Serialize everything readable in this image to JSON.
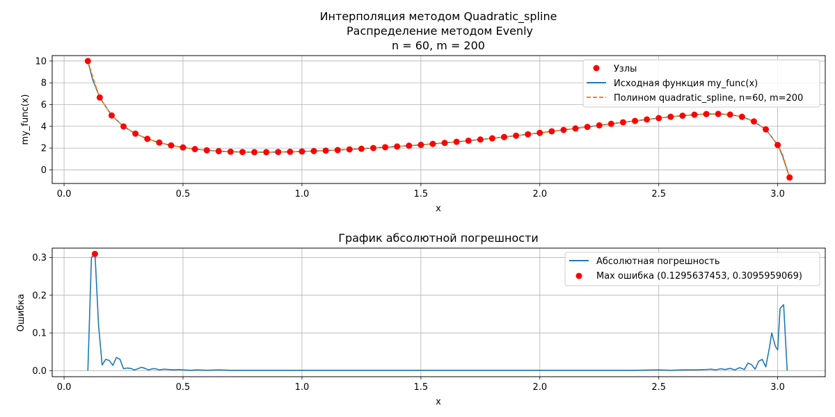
{
  "chart_data": [
    {
      "type": "line",
      "title_lines": [
        "Интерполяция методом Quadratic_spline",
        "Распределение методом Evenly",
        "n = 60, m = 200"
      ],
      "xlabel": "x",
      "ylabel": "my_func(x)",
      "xlim": [
        -0.05,
        3.2
      ],
      "ylim": [
        -1.25,
        10.5
      ],
      "xticks": [
        0.0,
        0.5,
        1.0,
        1.5,
        2.0,
        2.5,
        3.0
      ],
      "xtick_labels": [
        "0.0",
        "0.5",
        "1.0",
        "1.5",
        "2.0",
        "2.5",
        "3.0"
      ],
      "yticks": [
        0,
        2,
        4,
        6,
        8,
        10
      ],
      "ytick_labels": [
        "0",
        "2",
        "4",
        "6",
        "8",
        "10"
      ],
      "grid": true,
      "legend_position": "top-right",
      "legend": [
        "Узлы",
        "Исходная функция my_func(x)",
        "Полином quadratic_spline, n=60, m=200"
      ],
      "colors": {
        "nodes": "#ff0000",
        "function": "#1f77b4",
        "polynomial": "#ff7f0e"
      },
      "series": [
        {
          "name": "Узлы",
          "kind": "scatter",
          "x": [
            0.1,
            0.15,
            0.2,
            0.25,
            0.3,
            0.35,
            0.4,
            0.45,
            0.5,
            0.55,
            0.6,
            0.65,
            0.7,
            0.75,
            0.8,
            0.85,
            0.9,
            0.95,
            1.0,
            1.05,
            1.1,
            1.15,
            1.2,
            1.25,
            1.3,
            1.35,
            1.4,
            1.45,
            1.5,
            1.55,
            1.6,
            1.65,
            1.7,
            1.75,
            1.8,
            1.85,
            1.9,
            1.95,
            2.0,
            2.05,
            2.1,
            2.15,
            2.2,
            2.25,
            2.3,
            2.35,
            2.4,
            2.45,
            2.5,
            2.55,
            2.6,
            2.65,
            2.7,
            2.75,
            2.8,
            2.85,
            2.9,
            2.95,
            3.0,
            3.05
          ],
          "y": [
            10.0,
            6.65,
            5.0,
            3.99,
            3.33,
            2.85,
            2.51,
            2.25,
            2.06,
            1.91,
            1.8,
            1.72,
            1.67,
            1.64,
            1.63,
            1.63,
            1.64,
            1.66,
            1.69,
            1.73,
            1.77,
            1.82,
            1.88,
            1.94,
            2.01,
            2.08,
            2.15,
            2.22,
            2.3,
            2.39,
            2.48,
            2.58,
            2.68,
            2.79,
            2.9,
            3.02,
            3.14,
            3.27,
            3.4,
            3.54,
            3.67,
            3.81,
            3.95,
            4.09,
            4.23,
            4.37,
            4.5,
            4.63,
            4.76,
            4.88,
            4.98,
            5.07,
            5.13,
            5.14,
            5.08,
            4.88,
            4.45,
            3.72,
            2.29,
            -0.7
          ]
        },
        {
          "name": "Исходная функция my_func(x)",
          "kind": "line",
          "x": [
            0.1,
            0.12,
            0.15,
            0.2,
            0.25,
            0.3,
            0.35,
            0.4,
            0.45,
            0.5,
            0.55,
            0.6,
            0.65,
            0.7,
            0.75,
            0.8,
            0.85,
            0.9,
            0.95,
            1.0,
            1.05,
            1.1,
            1.15,
            1.2,
            1.25,
            1.3,
            1.35,
            1.4,
            1.45,
            1.5,
            1.55,
            1.6,
            1.65,
            1.7,
            1.75,
            1.8,
            1.85,
            1.9,
            1.95,
            2.0,
            2.05,
            2.1,
            2.15,
            2.2,
            2.25,
            2.3,
            2.35,
            2.4,
            2.45,
            2.5,
            2.55,
            2.6,
            2.65,
            2.7,
            2.75,
            2.8,
            2.85,
            2.9,
            2.95,
            3.0,
            3.02,
            3.05
          ],
          "y": [
            10.0,
            8.3,
            6.65,
            5.0,
            3.99,
            3.33,
            2.85,
            2.51,
            2.25,
            2.06,
            1.91,
            1.8,
            1.72,
            1.67,
            1.64,
            1.63,
            1.63,
            1.64,
            1.66,
            1.69,
            1.73,
            1.77,
            1.82,
            1.88,
            1.94,
            2.01,
            2.08,
            2.15,
            2.22,
            2.3,
            2.39,
            2.48,
            2.58,
            2.68,
            2.79,
            2.9,
            3.02,
            3.14,
            3.27,
            3.4,
            3.54,
            3.67,
            3.81,
            3.95,
            4.09,
            4.23,
            4.37,
            4.5,
            4.63,
            4.76,
            4.88,
            4.98,
            5.07,
            5.13,
            5.14,
            5.08,
            4.88,
            4.45,
            3.72,
            2.29,
            1.3,
            -0.7
          ]
        },
        {
          "name": "Полином quadratic_spline, n=60, m=200",
          "kind": "dashed-line",
          "x": [
            0.1,
            0.13,
            0.15,
            0.2,
            0.25,
            0.3,
            0.35,
            0.4,
            0.45,
            0.5,
            0.55,
            0.6,
            0.65,
            0.7,
            0.75,
            0.8,
            0.85,
            0.9,
            0.95,
            1.0,
            1.05,
            1.1,
            1.15,
            1.2,
            1.25,
            1.3,
            1.35,
            1.4,
            1.45,
            1.5,
            1.55,
            1.6,
            1.65,
            1.7,
            1.75,
            1.8,
            1.85,
            1.9,
            1.95,
            2.0,
            2.05,
            2.1,
            2.15,
            2.2,
            2.25,
            2.3,
            2.35,
            2.4,
            2.45,
            2.5,
            2.55,
            2.6,
            2.65,
            2.7,
            2.75,
            2.8,
            2.85,
            2.9,
            2.95,
            3.0,
            3.02,
            3.05
          ],
          "y": [
            10.0,
            7.9,
            6.65,
            5.0,
            3.99,
            3.33,
            2.85,
            2.51,
            2.25,
            2.06,
            1.91,
            1.8,
            1.72,
            1.67,
            1.64,
            1.63,
            1.63,
            1.64,
            1.66,
            1.69,
            1.73,
            1.77,
            1.82,
            1.88,
            1.94,
            2.01,
            2.08,
            2.15,
            2.22,
            2.3,
            2.39,
            2.48,
            2.58,
            2.68,
            2.79,
            2.9,
            3.02,
            3.14,
            3.27,
            3.4,
            3.54,
            3.67,
            3.81,
            3.95,
            4.09,
            4.23,
            4.37,
            4.5,
            4.63,
            4.76,
            4.88,
            4.98,
            5.07,
            5.13,
            5.14,
            5.08,
            4.88,
            4.45,
            3.72,
            2.29,
            1.45,
            -0.7
          ]
        }
      ]
    },
    {
      "type": "line",
      "title": "График абсолютной погрешности",
      "xlabel": "x",
      "ylabel": "Ошибка",
      "xlim": [
        -0.05,
        3.2
      ],
      "ylim": [
        -0.016,
        0.325
      ],
      "xticks": [
        0.0,
        0.5,
        1.0,
        1.5,
        2.0,
        2.5,
        3.0
      ],
      "xtick_labels": [
        "0.0",
        "0.5",
        "1.0",
        "1.5",
        "2.0",
        "2.5",
        "3.0"
      ],
      "yticks": [
        0.0,
        0.1,
        0.2,
        0.3
      ],
      "ytick_labels": [
        "0.0",
        "0.1",
        "0.2",
        "0.3"
      ],
      "grid": true,
      "legend_position": "top-right",
      "legend": [
        "Абсолютная погрешность",
        "Max ошибка (0.1295637453, 0.3095959069)"
      ],
      "colors": {
        "error": "#1f77b4",
        "max_point": "#ff0000"
      },
      "series": [
        {
          "name": "Абсолютная погрешность",
          "kind": "line",
          "x": [
            0.1,
            0.115,
            0.13,
            0.145,
            0.16,
            0.175,
            0.19,
            0.205,
            0.22,
            0.235,
            0.25,
            0.265,
            0.28,
            0.295,
            0.31,
            0.325,
            0.34,
            0.355,
            0.37,
            0.385,
            0.4,
            0.42,
            0.44,
            0.46,
            0.48,
            0.5,
            0.53,
            0.56,
            0.6,
            0.65,
            0.7,
            0.8,
            1.0,
            1.5,
            2.0,
            2.4,
            2.5,
            2.55,
            2.6,
            2.65,
            2.7,
            2.72,
            2.74,
            2.76,
            2.78,
            2.8,
            2.82,
            2.84,
            2.86,
            2.875,
            2.89,
            2.905,
            2.92,
            2.935,
            2.95,
            2.965,
            2.975,
            2.99,
            3.0,
            3.01,
            3.025,
            3.04
          ],
          "y": [
            0.0,
            0.3,
            0.31,
            0.12,
            0.015,
            0.03,
            0.027,
            0.014,
            0.035,
            0.03,
            0.005,
            0.007,
            0.006,
            0.002,
            0.005,
            0.009,
            0.006,
            0.002,
            0.005,
            0.005,
            0.002,
            0.004,
            0.003,
            0.002,
            0.003,
            0.002,
            0.001,
            0.002,
            0.001,
            0.002,
            0.001,
            0.001,
            0.001,
            0.001,
            0.001,
            0.001,
            0.002,
            0.001,
            0.002,
            0.002,
            0.003,
            0.004,
            0.002,
            0.005,
            0.003,
            0.006,
            0.002,
            0.008,
            0.003,
            0.02,
            0.016,
            0.004,
            0.025,
            0.03,
            0.01,
            0.06,
            0.1,
            0.065,
            0.055,
            0.165,
            0.175,
            0.0
          ]
        },
        {
          "name": "Max ошибка (0.1295637453, 0.3095959069)",
          "kind": "scatter",
          "x": [
            0.1295637453
          ],
          "y": [
            0.3095959069
          ]
        }
      ]
    }
  ]
}
